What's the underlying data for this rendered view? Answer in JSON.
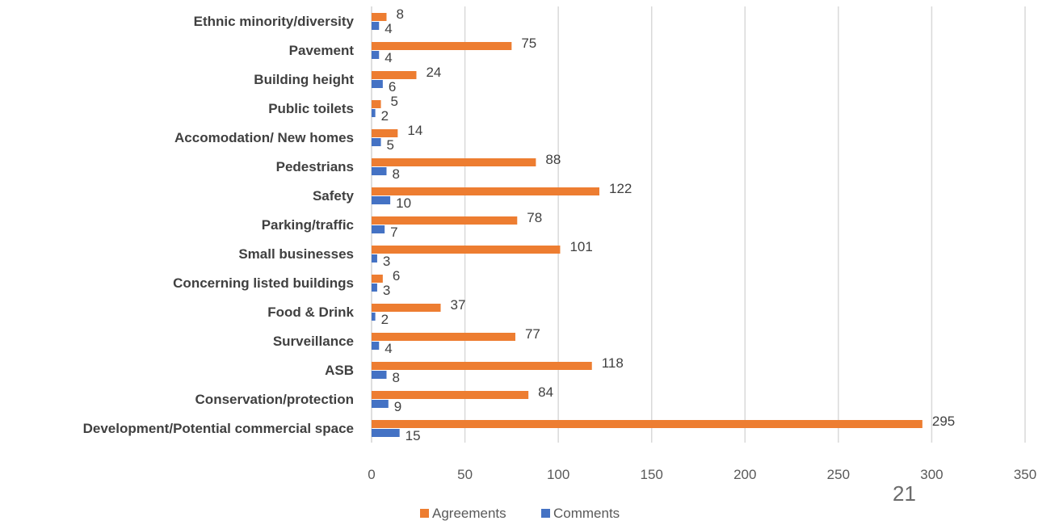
{
  "chart_data": {
    "type": "bar",
    "orientation": "horizontal",
    "categories": [
      "Ethnic minority/diversity",
      "Pavement",
      "Building height",
      "Public toilets",
      "Accomodation/ New homes",
      "Pedestrians",
      "Safety",
      "Parking/traffic",
      "Small businesses",
      "Concerning listed buildings",
      "Food & Drink",
      "Surveillance",
      "ASB",
      "Conservation/protection",
      "Development/Potential commercial space"
    ],
    "series": [
      {
        "name": "Agreements",
        "color": "#ED7D31",
        "values": [
          8,
          75,
          24,
          5,
          14,
          88,
          122,
          78,
          101,
          6,
          37,
          77,
          118,
          84,
          295
        ]
      },
      {
        "name": "Comments",
        "color": "#4472C4",
        "values": [
          4,
          4,
          6,
          2,
          5,
          8,
          10,
          7,
          3,
          3,
          2,
          4,
          8,
          9,
          15
        ]
      }
    ],
    "xlim": [
      0,
      350
    ],
    "xticks": [
      "0",
      "50",
      "100",
      "150",
      "200",
      "250",
      "300",
      "350"
    ],
    "grid": true,
    "legend": "bottom",
    "title": "",
    "xlabel": "",
    "ylabel": ""
  },
  "page_number": "21"
}
